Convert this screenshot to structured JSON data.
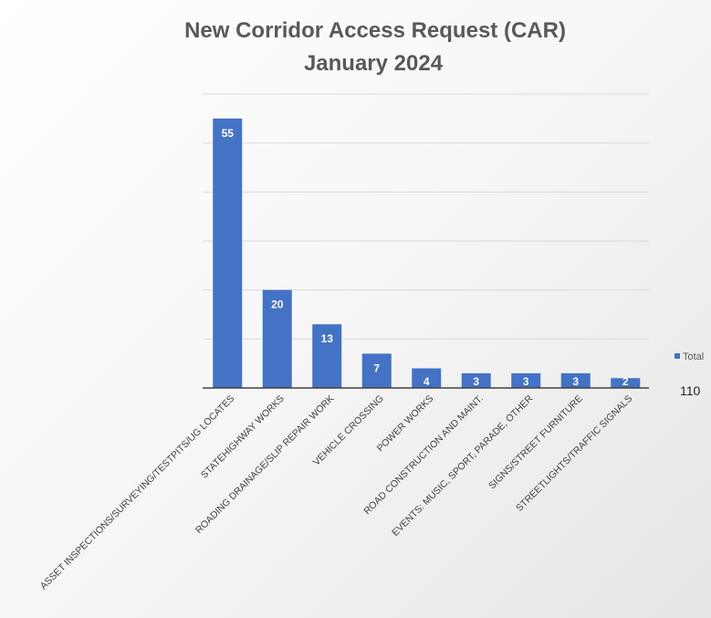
{
  "chart_data": {
    "type": "bar",
    "title": "New Corridor Access Request (CAR)",
    "subtitle": "January 2024",
    "categories": [
      "ASSET INSPECTIONS/SURVEYING/TESTPITS/UG LOCATES",
      "STATEHIGHWAY WORKS",
      "ROADING DRAINAGE/SLIP REPAIR WORK",
      "VEHICLE CROSSING",
      "POWER WORKS",
      "ROAD CONSTRUCTION AND MAINT.",
      "EVENTS: MUSIC, SPORT, PARADE, OTHER",
      "SIGNS/STREET FURNITURE",
      "STREETLIGHTS/TRAFFIC SIGNALS"
    ],
    "series": [
      {
        "name": "Total",
        "values": [
          55,
          20,
          13,
          7,
          4,
          3,
          3,
          3,
          2
        ]
      }
    ],
    "ylim": [
      0,
      60
    ],
    "grid": true,
    "legend_position": "right",
    "series_color": "#4472c4",
    "total_label": "110"
  }
}
